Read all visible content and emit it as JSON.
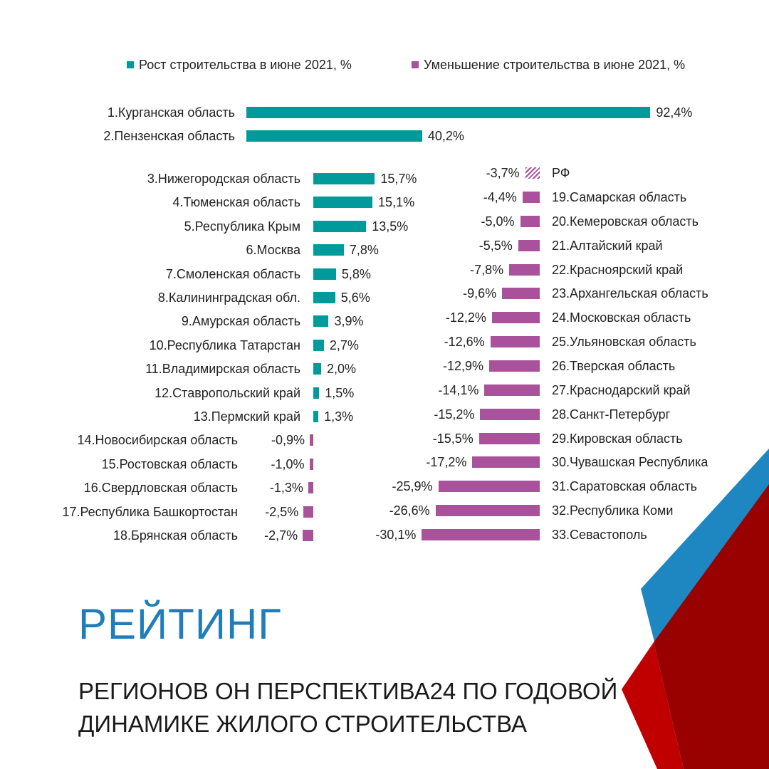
{
  "colors": {
    "growth": "#009a9a",
    "decline": "#a9519a",
    "title": "#1f7dbb",
    "deco_blue": "#1e86c0",
    "deco_red": "#c00000",
    "deco_dark_red": "#990000"
  },
  "chart_data": {
    "type": "bar",
    "orientation": "horizontal",
    "legend": {
      "placement": "top",
      "items": [
        {
          "label": "Рост строительства  в июне 2021, %",
          "color": "#009a9a"
        },
        {
          "label": "Уменьшение строительства в июне 2021, %",
          "color": "#a9519a"
        }
      ]
    },
    "top": [
      {
        "label": "1.Курганская область",
        "value": 92.4,
        "text": "92,4%"
      },
      {
        "label": "2.Пензенская область",
        "value": 40.2,
        "text": "40,2%"
      }
    ],
    "left": [
      {
        "label": "3.Нижегородская область",
        "value": 15.7,
        "text": "15,7%"
      },
      {
        "label": "4.Тюменская область",
        "value": 15.1,
        "text": "15,1%"
      },
      {
        "label": "5.Республика Крым",
        "value": 13.5,
        "text": "13,5%"
      },
      {
        "label": "6.Москва",
        "value": 7.8,
        "text": "7,8%"
      },
      {
        "label": "7.Смоленская область",
        "value": 5.8,
        "text": "5,8%"
      },
      {
        "label": "8.Калининградская обл.",
        "value": 5.6,
        "text": "5,6%"
      },
      {
        "label": "9.Амурская область",
        "value": 3.9,
        "text": "3,9%"
      },
      {
        "label": "10.Республика Татарстан",
        "value": 2.7,
        "text": "2,7%"
      },
      {
        "label": "11.Владимирская область",
        "value": 2.0,
        "text": "2,0%"
      },
      {
        "label": "12.Ставропольский край",
        "value": 1.5,
        "text": "1,5%"
      },
      {
        "label": "13.Пермский край",
        "value": 1.3,
        "text": "1,3%"
      },
      {
        "label": "14.Новосибирская область",
        "value": -0.9,
        "text": "-0,9%"
      },
      {
        "label": "15.Ростовская область",
        "value": -1.0,
        "text": "-1,0%"
      },
      {
        "label": "16.Свердловская область",
        "value": -1.3,
        "text": "-1,3%"
      },
      {
        "label": "17.Республика Башкортостан",
        "value": -2.5,
        "text": "-2,5%"
      },
      {
        "label": "18.Брянская область",
        "value": -2.7,
        "text": "-2,7%"
      }
    ],
    "right": [
      {
        "label": "РФ",
        "value": -3.7,
        "text": "-3,7%",
        "hatched": true
      },
      {
        "label": "19.Самарская область",
        "value": -4.4,
        "text": "-4,4%"
      },
      {
        "label": "20.Кемеровская область",
        "value": -5.0,
        "text": "-5,0%"
      },
      {
        "label": "21.Алтайский край",
        "value": -5.5,
        "text": "-5,5%"
      },
      {
        "label": "22.Красноярский край",
        "value": -7.8,
        "text": "-7,8%"
      },
      {
        "label": "23.Архангельская область",
        "value": -9.6,
        "text": "-9,6%"
      },
      {
        "label": "24.Московская область",
        "value": -12.2,
        "text": "-12,2%"
      },
      {
        "label": "25.Ульяновская область",
        "value": -12.6,
        "text": "-12,6%"
      },
      {
        "label": "26.Тверская область",
        "value": -12.9,
        "text": "-12,9%"
      },
      {
        "label": "27.Краснодарский край",
        "value": -14.1,
        "text": "-14,1%"
      },
      {
        "label": "28.Санкт-Петербург",
        "value": -15.2,
        "text": "-15,2%"
      },
      {
        "label": "29.Кировская область",
        "value": -15.5,
        "text": "-15,5%"
      },
      {
        "label": "30.Чувашская Республика",
        "value": -17.2,
        "text": "-17,2%"
      },
      {
        "label": "31.Саратовская область",
        "value": -25.9,
        "text": "-25,9%"
      },
      {
        "label": "32.Республика Коми",
        "value": -26.6,
        "text": "-26,6%"
      },
      {
        "label": "33.Севастополь",
        "value": -30.1,
        "text": "-30,1%"
      }
    ]
  },
  "heading": {
    "title": "РЕЙТИНГ",
    "line1": "РЕГИОНОВ ОН ПЕРСПЕКТИВА24 ПО ГОДОВОЙ",
    "line2": "ДИНАМИКЕ ЖИЛОГО СТРОИТЕЛЬСТВА"
  }
}
